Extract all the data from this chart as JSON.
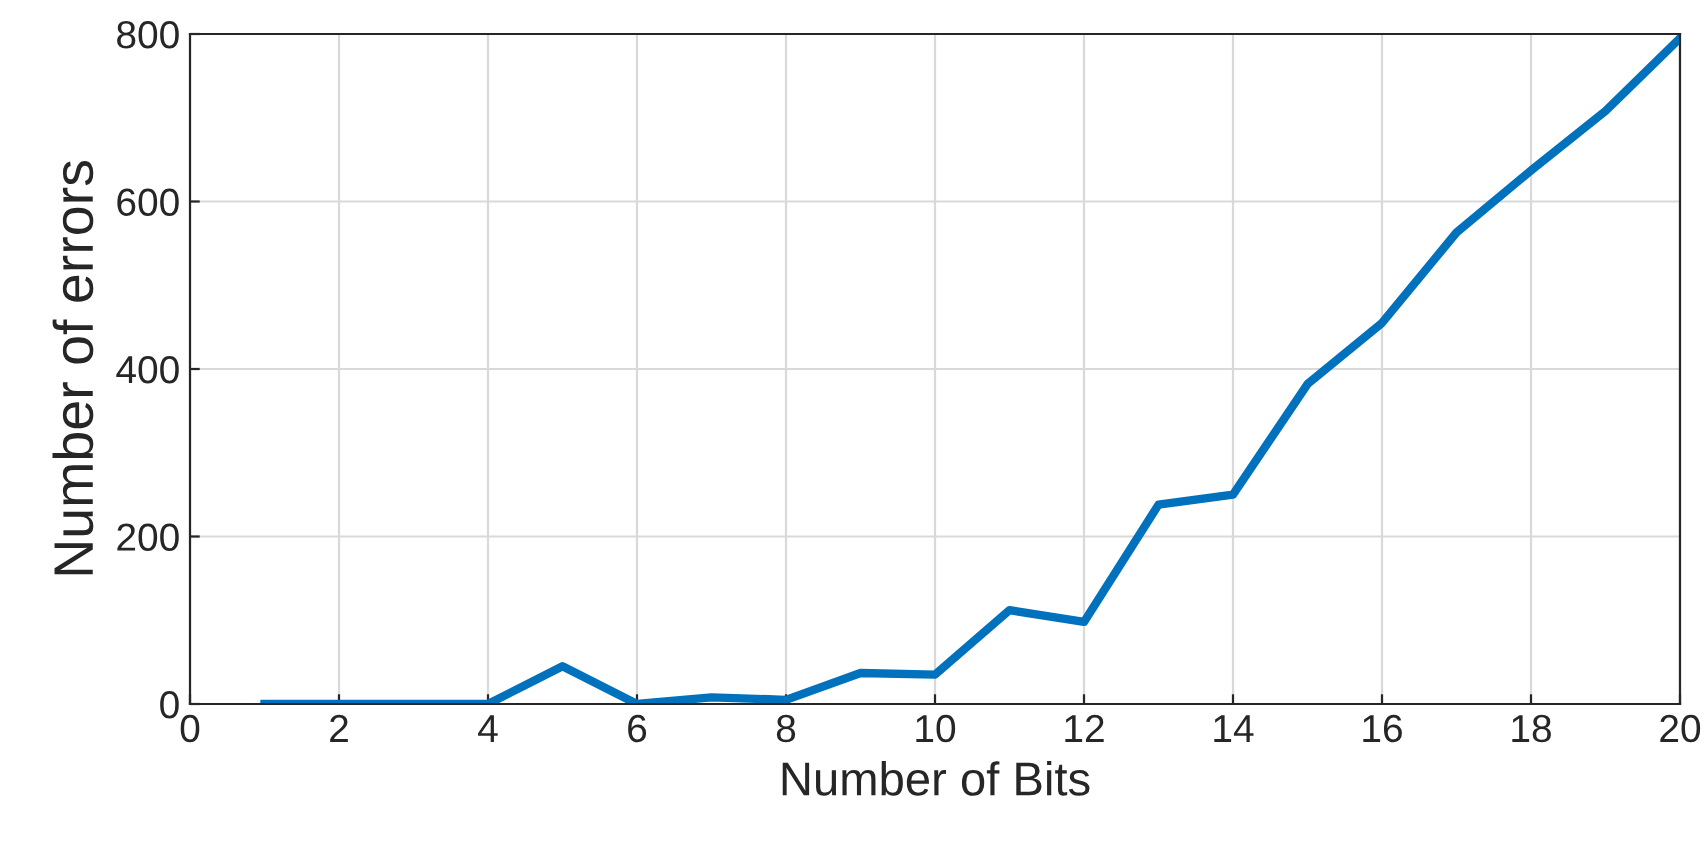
{
  "chart_data": {
    "type": "line",
    "xlabel": "Number of Bits",
    "ylabel": "Number of errors",
    "x": [
      1,
      2,
      3,
      4,
      5,
      6,
      7,
      8,
      9,
      10,
      11,
      12,
      13,
      14,
      15,
      16,
      17,
      18,
      19,
      20
    ],
    "series": [
      {
        "color": "#0072bd",
        "values": [
          0,
          0,
          0,
          0,
          45,
          0,
          8,
          5,
          37,
          35,
          112,
          98,
          238,
          250,
          382,
          455,
          563,
          637,
          708,
          795
        ]
      }
    ],
    "xlim": [
      0,
      20
    ],
    "xticks": [
      0,
      2,
      4,
      6,
      8,
      10,
      12,
      14,
      16,
      18,
      20
    ],
    "ylim": [
      0,
      800
    ],
    "yticks": [
      0,
      200,
      400,
      600,
      800
    ],
    "grid": true,
    "line_style": "solid"
  }
}
